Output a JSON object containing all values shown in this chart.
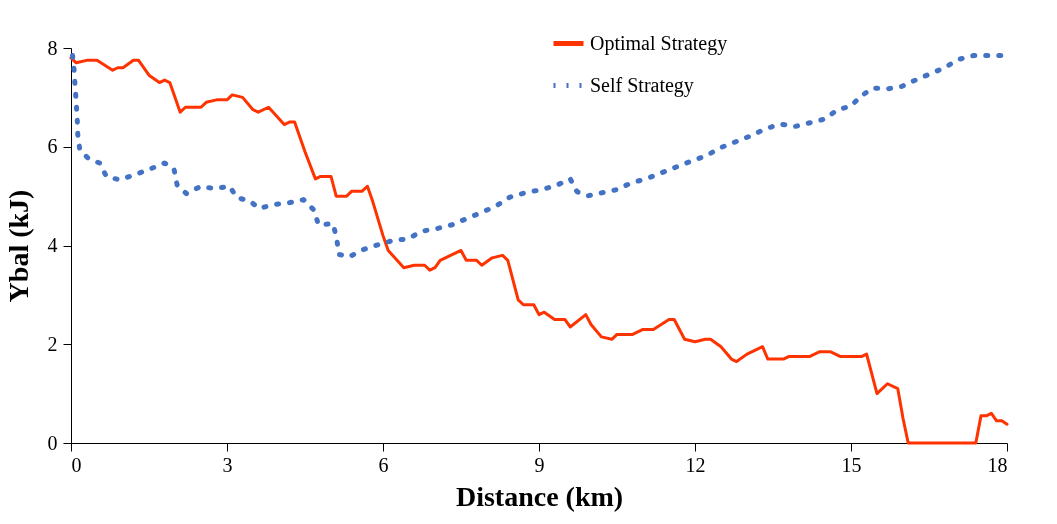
{
  "chart_data": {
    "type": "line",
    "xlabel": "Distance (km)",
    "ylabel": "Υbal (kJ)",
    "xlim": [
      0,
      18
    ],
    "ylim": [
      0,
      8
    ],
    "xticks": [
      0,
      3,
      6,
      9,
      12,
      15,
      18
    ],
    "yticks": [
      0,
      2,
      4,
      6,
      8
    ],
    "grid": false,
    "legend": "top right",
    "marker": "none",
    "series": [
      {
        "name": "Optimal Strategy",
        "color": "#ff3300",
        "line_style": "solid",
        "x": [
          0,
          0.1,
          0.3,
          0.5,
          0.8,
          0.9,
          1.0,
          1.2,
          1.3,
          1.5,
          1.7,
          1.8,
          1.9,
          2.1,
          2.2,
          2.5,
          2.6,
          2.8,
          3.0,
          3.1,
          3.3,
          3.5,
          3.6,
          3.8,
          4.1,
          4.2,
          4.3,
          4.5,
          4.7,
          4.8,
          5.0,
          5.1,
          5.3,
          5.4,
          5.6,
          5.7,
          5.8,
          6.0,
          6.1,
          6.4,
          6.6,
          6.8,
          6.9,
          7.0,
          7.1,
          7.3,
          7.5,
          7.6,
          7.8,
          7.9,
          8.1,
          8.3,
          8.4,
          8.6,
          8.7,
          8.9,
          9.0,
          9.1,
          9.3,
          9.5,
          9.6,
          9.9,
          10.0,
          10.2,
          10.4,
          10.5,
          10.8,
          11.0,
          11.2,
          11.5,
          11.6,
          11.8,
          12.0,
          12.2,
          12.3,
          12.5,
          12.7,
          12.8,
          13.0,
          13.3,
          13.4,
          13.7,
          13.8,
          14.2,
          14.4,
          14.6,
          14.8,
          15.2,
          15.3,
          15.5,
          15.7,
          15.9,
          16.0,
          16.1,
          17.4,
          17.5,
          17.6,
          17.7,
          17.8,
          17.9,
          18.0
        ],
        "values": [
          7.8,
          7.7,
          7.75,
          7.75,
          7.55,
          7.6,
          7.6,
          7.75,
          7.75,
          7.45,
          7.3,
          7.35,
          7.3,
          6.7,
          6.8,
          6.8,
          6.9,
          6.95,
          6.95,
          7.05,
          7.0,
          6.75,
          6.7,
          6.8,
          6.45,
          6.5,
          6.5,
          5.9,
          5.35,
          5.4,
          5.4,
          5.0,
          5.0,
          5.1,
          5.1,
          5.2,
          4.9,
          4.2,
          3.9,
          3.55,
          3.6,
          3.6,
          3.5,
          3.55,
          3.7,
          3.8,
          3.9,
          3.7,
          3.7,
          3.6,
          3.75,
          3.8,
          3.7,
          2.9,
          2.8,
          2.8,
          2.6,
          2.65,
          2.5,
          2.5,
          2.35,
          2.6,
          2.4,
          2.15,
          2.1,
          2.2,
          2.2,
          2.3,
          2.3,
          2.5,
          2.5,
          2.1,
          2.05,
          2.1,
          2.1,
          1.95,
          1.7,
          1.65,
          1.8,
          1.95,
          1.7,
          1.7,
          1.75,
          1.75,
          1.85,
          1.85,
          1.75,
          1.75,
          1.8,
          1.0,
          1.2,
          1.1,
          0.5,
          0.0,
          0.0,
          0.55,
          0.55,
          0.6,
          0.45,
          0.45,
          0.38
        ]
      },
      {
        "name": "Self Strategy",
        "color": "#4472c4",
        "line_style": "dotted",
        "x": [
          0.03,
          0.06,
          0.08,
          0.1,
          0.12,
          0.13,
          0.17,
          0.33,
          0.55,
          0.68,
          0.93,
          1.22,
          1.52,
          1.8,
          1.98,
          2.04,
          2.22,
          2.5,
          2.76,
          3.05,
          3.19,
          3.44,
          3.62,
          3.89,
          4.17,
          4.47,
          4.67,
          4.76,
          5.04,
          5.11,
          5.15,
          5.35,
          5.63,
          5.92,
          6.22,
          6.47,
          6.75,
          7.03,
          7.33,
          7.62,
          7.9,
          8.19,
          8.44,
          8.74,
          9.04,
          9.32,
          9.6,
          9.73,
          9.95,
          10.22,
          10.49,
          10.78,
          11.06,
          11.35,
          11.64,
          11.93,
          12.22,
          12.49,
          12.78,
          13.07,
          13.35,
          13.64,
          13.92,
          14.19,
          14.49,
          14.74,
          14.99,
          15.21,
          15.43,
          15.69,
          15.97,
          16.26,
          16.53,
          16.8,
          17.07,
          17.37,
          17.67,
          17.97
        ],
        "values": [
          7.85,
          7.55,
          7.2,
          6.9,
          6.56,
          6.25,
          5.93,
          5.77,
          5.67,
          5.4,
          5.33,
          5.43,
          5.55,
          5.67,
          5.55,
          5.23,
          5.05,
          5.2,
          5.15,
          5.2,
          4.97,
          4.9,
          4.75,
          4.83,
          4.86,
          4.93,
          4.72,
          4.42,
          4.44,
          4.14,
          3.82,
          3.77,
          3.92,
          4.02,
          4.11,
          4.13,
          4.29,
          4.34,
          4.42,
          4.55,
          4.67,
          4.81,
          4.98,
          5.07,
          5.13,
          5.21,
          5.35,
          5.09,
          5.01,
          5.07,
          5.13,
          5.27,
          5.35,
          5.47,
          5.59,
          5.71,
          5.82,
          5.98,
          6.1,
          6.22,
          6.36,
          6.46,
          6.41,
          6.48,
          6.56,
          6.75,
          6.82,
          7.04,
          7.19,
          7.17,
          7.22,
          7.36,
          7.48,
          7.6,
          7.77,
          7.85,
          7.85,
          7.85
        ]
      }
    ]
  }
}
